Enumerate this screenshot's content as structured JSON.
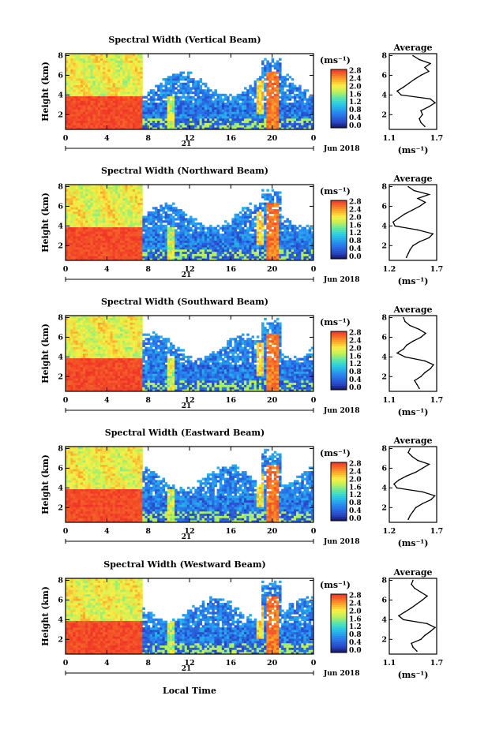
{
  "figure": {
    "xlabel": "Local Time",
    "date_label": "Jun 2018",
    "day_label": "21",
    "height_label": "Height (km)",
    "unit_label": "(ms⁻¹)",
    "profile_title": "Average",
    "profile_xlabel": "(ms⁻¹)",
    "x_ticks": [
      "0",
      "4",
      "8",
      "12",
      "16",
      "20",
      "0"
    ],
    "y_ticks": [
      "2",
      "4",
      "6",
      "8"
    ],
    "colorbar_ticks": [
      "0.0",
      "0.4",
      "0.8",
      "1.2",
      "1.6",
      "2.0",
      "2.4",
      "2.8"
    ]
  },
  "chart_data": [
    {
      "type": "heatmap",
      "title": "Spectral Width (Vertical Beam)",
      "xlim": [
        0,
        24
      ],
      "ylim": [
        0.5,
        8.2
      ],
      "clim": [
        0,
        2.8
      ],
      "profile": {
        "type": "line",
        "xlim": [
          1.1,
          1.7
        ],
        "x_ticks": [
          "1.1",
          "1.7"
        ],
        "heights": [
          0.8,
          1.2,
          1.6,
          2.0,
          2.4,
          2.8,
          3.2,
          3.6,
          4.0,
          4.4,
          4.8,
          5.2,
          5.6,
          6.0,
          6.4,
          6.8,
          7.2,
          7.6,
          8.0
        ],
        "values": [
          1.55,
          1.5,
          1.48,
          1.52,
          1.5,
          1.6,
          1.68,
          1.62,
          1.25,
          1.2,
          1.28,
          1.35,
          1.42,
          1.5,
          1.6,
          1.55,
          1.62,
          1.48,
          1.4
        ]
      }
    },
    {
      "type": "heatmap",
      "title": "Spectral Width (Northward Beam)",
      "xlim": [
        0,
        24
      ],
      "ylim": [
        0.5,
        8.2
      ],
      "clim": [
        0,
        2.8
      ],
      "profile": {
        "type": "line",
        "xlim": [
          1.2,
          1.7
        ],
        "x_ticks": [
          "1.2",
          "1.7"
        ],
        "heights": [
          0.8,
          1.2,
          1.6,
          2.0,
          2.4,
          2.8,
          3.2,
          3.6,
          4.0,
          4.4,
          4.8,
          5.2,
          5.6,
          6.0,
          6.4,
          6.8,
          7.2,
          7.6,
          8.0
        ],
        "values": [
          1.38,
          1.4,
          1.42,
          1.45,
          1.52,
          1.62,
          1.66,
          1.5,
          1.26,
          1.24,
          1.3,
          1.36,
          1.44,
          1.52,
          1.58,
          1.5,
          1.62,
          1.46,
          1.4
        ]
      }
    },
    {
      "type": "heatmap",
      "title": "Spectral Width (Southward Beam)",
      "xlim": [
        0,
        24
      ],
      "ylim": [
        0.5,
        8.2
      ],
      "clim": [
        0,
        2.8
      ],
      "profile": {
        "type": "line",
        "xlim": [
          1.1,
          1.7
        ],
        "x_ticks": [
          "1.1",
          "1.7"
        ],
        "heights": [
          0.8,
          1.2,
          1.6,
          2.0,
          2.4,
          2.8,
          3.2,
          3.6,
          4.0,
          4.4,
          4.8,
          5.2,
          5.6,
          6.0,
          6.4,
          6.8,
          7.2,
          7.6,
          8.0
        ],
        "values": [
          1.48,
          1.45,
          1.42,
          1.5,
          1.55,
          1.62,
          1.66,
          1.55,
          1.3,
          1.2,
          1.28,
          1.32,
          1.4,
          1.5,
          1.56,
          1.48,
          1.36,
          1.3,
          1.28
        ]
      }
    },
    {
      "type": "heatmap",
      "title": "Spectral Width (Eastward Beam)",
      "xlim": [
        0,
        24
      ],
      "ylim": [
        0.5,
        8.2
      ],
      "clim": [
        0,
        2.8
      ],
      "profile": {
        "type": "line",
        "xlim": [
          1.2,
          1.7
        ],
        "x_ticks": [
          "1.2",
          "1.7"
        ],
        "heights": [
          0.8,
          1.2,
          1.6,
          2.0,
          2.4,
          2.8,
          3.2,
          3.6,
          4.0,
          4.4,
          4.8,
          5.2,
          5.6,
          6.0,
          6.4,
          6.8,
          7.2,
          7.6,
          8.0
        ],
        "values": [
          1.4,
          1.42,
          1.45,
          1.48,
          1.55,
          1.64,
          1.68,
          1.55,
          1.28,
          1.25,
          1.3,
          1.38,
          1.48,
          1.55,
          1.62,
          1.5,
          1.44,
          1.4,
          1.42
        ]
      }
    },
    {
      "type": "heatmap",
      "title": "Spectral Width (Westward Beam)",
      "xlim": [
        0,
        24
      ],
      "ylim": [
        0.5,
        8.2
      ],
      "clim": [
        0,
        2.8
      ],
      "profile": {
        "type": "line",
        "xlim": [
          1.1,
          1.7
        ],
        "x_ticks": [
          "1.1",
          "1.7"
        ],
        "heights": [
          0.8,
          1.2,
          1.6,
          2.0,
          2.4,
          2.8,
          3.2,
          3.6,
          4.0,
          4.4,
          4.8,
          5.2,
          5.6,
          6.0,
          6.4,
          6.8,
          7.2,
          7.6,
          8.0
        ],
        "values": [
          1.45,
          1.4,
          1.38,
          1.5,
          1.55,
          1.62,
          1.68,
          1.58,
          1.28,
          1.22,
          1.3,
          1.38,
          1.45,
          1.52,
          1.58,
          1.5,
          1.42,
          1.38,
          1.4
        ]
      }
    }
  ]
}
